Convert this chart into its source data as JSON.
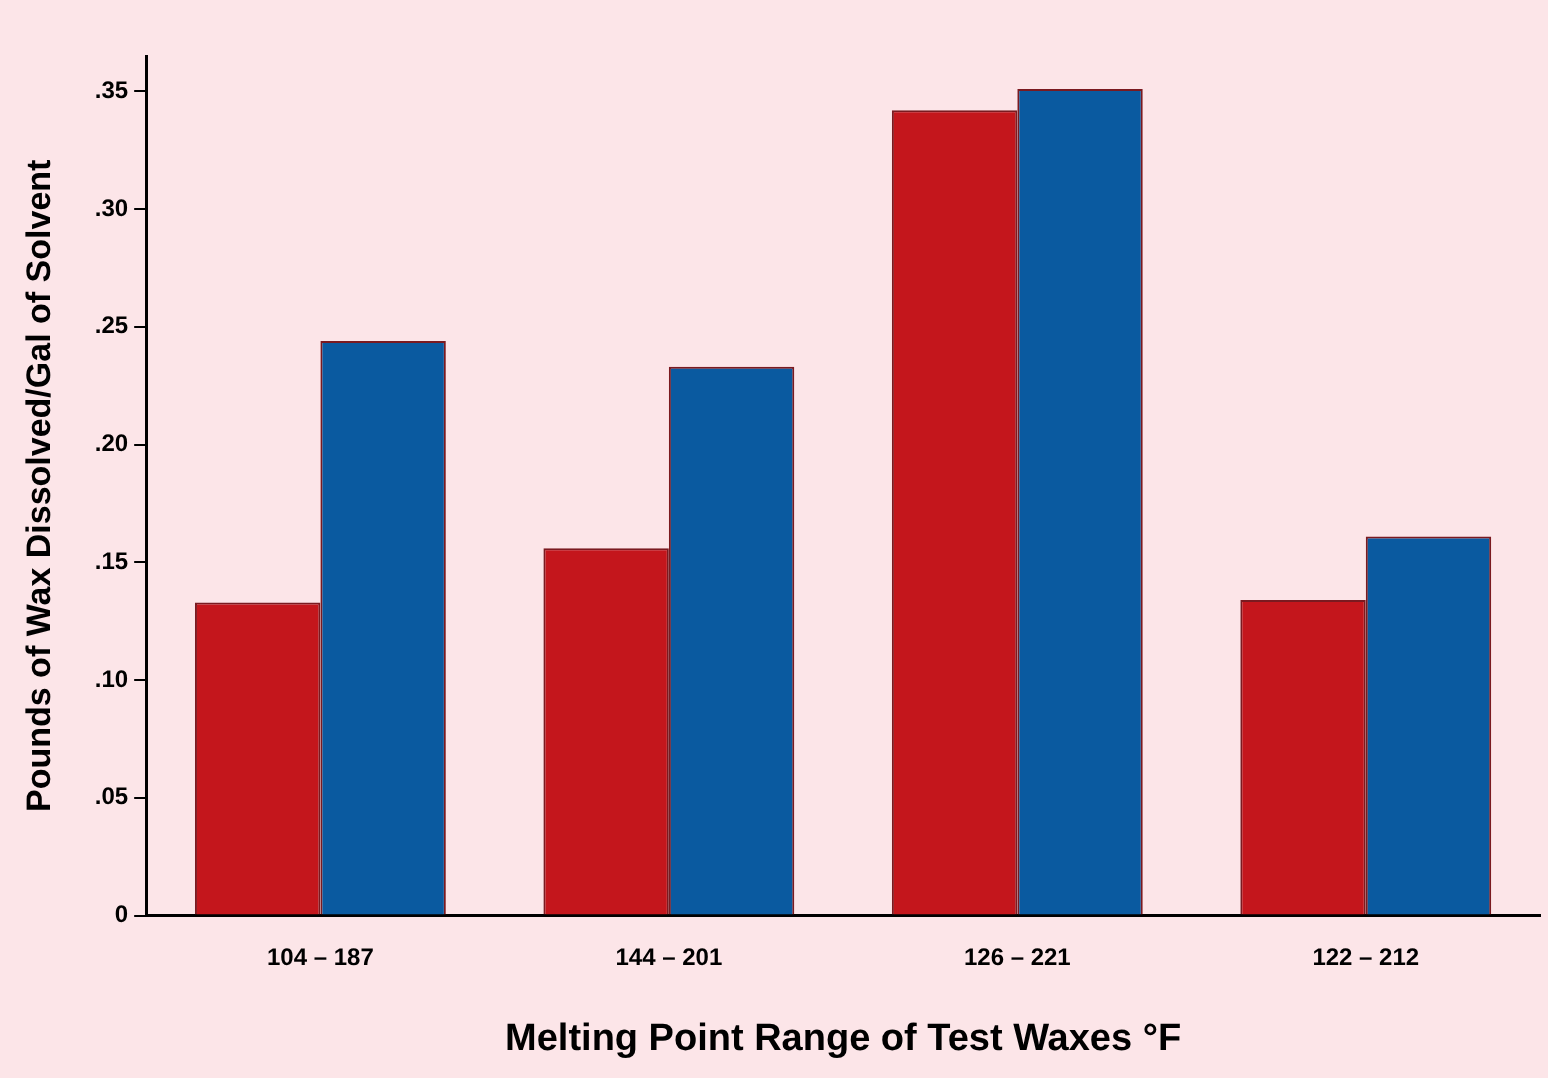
{
  "chart_data": {
    "type": "bar",
    "xlabel": "Melting Point Range of Test Waxes °F",
    "ylabel": "Pounds of Wax Dissolved/Gal of Solvent",
    "categories": [
      "104 – 187",
      "144 – 201",
      "126 – 221",
      "122 – 212"
    ],
    "series": [
      {
        "color": "#c4161c",
        "values": [
          0.133,
          0.156,
          0.342,
          0.134
        ]
      },
      {
        "color": "#0a5aa0",
        "values": [
          0.244,
          0.233,
          0.351,
          0.161
        ]
      }
    ],
    "ylim": [
      0,
      0.365
    ],
    "yticks": [
      {
        "value": 0,
        "label": "0"
      },
      {
        "value": 0.05,
        "label": ".05"
      },
      {
        "value": 0.1,
        "label": ".10"
      },
      {
        "value": 0.15,
        "label": ".15"
      },
      {
        "value": 0.2,
        "label": ".20"
      },
      {
        "value": 0.25,
        "label": ".25"
      },
      {
        "value": 0.3,
        "label": ".30"
      },
      {
        "value": 0.35,
        "label": ".35"
      }
    ],
    "grid": false,
    "legend": false
  }
}
